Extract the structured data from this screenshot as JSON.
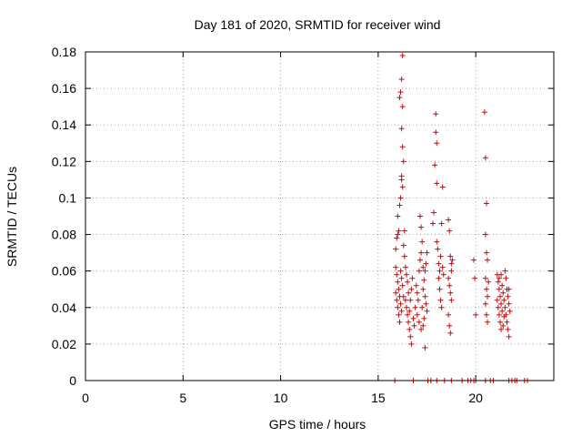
{
  "chart_data": {
    "type": "scatter",
    "title": "Day 181 of 2020, SRMTID for receiver wind",
    "xlabel": "GPS time / hours",
    "ylabel": "SRMTID / TECUs",
    "xlim": [
      0,
      24
    ],
    "ylim": [
      0,
      0.18
    ],
    "x_ticks": [
      0,
      5,
      10,
      15,
      20
    ],
    "y_ticks": [
      0,
      0.02,
      0.04,
      0.06,
      0.08,
      0.1,
      0.12,
      0.14,
      0.16,
      0.18
    ],
    "x_tick_labels": [
      "0",
      "5",
      "10",
      "15",
      "20"
    ],
    "y_tick_labels": [
      "0",
      "0.02",
      "0.04",
      "0.06",
      "0.08",
      "0.1",
      "0.12",
      "0.14",
      "0.16",
      "0.18"
    ],
    "grid": true,
    "marker": "+",
    "series_color": "#dd0000",
    "series": [
      {
        "points": [
          [
            15.85,
            0.0
          ],
          [
            16.8,
            0.0
          ],
          [
            17.55,
            0.0
          ],
          [
            17.7,
            0.0
          ],
          [
            18.0,
            0.0
          ],
          [
            18.4,
            0.0
          ],
          [
            18.75,
            0.0
          ],
          [
            19.3,
            0.0
          ],
          [
            19.6,
            0.0
          ],
          [
            19.75,
            0.0
          ],
          [
            19.9,
            0.0
          ],
          [
            20.0,
            0.0
          ],
          [
            20.5,
            0.0
          ],
          [
            20.75,
            0.0
          ],
          [
            20.9,
            0.0
          ],
          [
            21.7,
            0.0
          ],
          [
            21.85,
            0.0
          ],
          [
            22.0,
            0.0
          ],
          [
            22.1,
            0.0
          ],
          [
            22.5,
            0.0
          ],
          [
            22.65,
            0.0
          ],
          [
            15.9,
            0.072
          ],
          [
            15.95,
            0.078
          ],
          [
            16.0,
            0.08
          ],
          [
            16.0,
            0.09
          ],
          [
            16.05,
            0.082
          ],
          [
            16.1,
            0.096
          ],
          [
            16.15,
            0.1
          ],
          [
            16.2,
            0.11
          ],
          [
            16.25,
            0.106
          ],
          [
            16.1,
            0.155
          ],
          [
            16.15,
            0.158
          ],
          [
            16.2,
            0.165
          ],
          [
            16.25,
            0.178
          ],
          [
            16.25,
            0.15
          ],
          [
            16.2,
            0.138
          ],
          [
            16.25,
            0.128
          ],
          [
            16.3,
            0.12
          ],
          [
            16.2,
            0.112
          ],
          [
            15.9,
            0.062
          ],
          [
            15.95,
            0.058
          ],
          [
            16.0,
            0.054
          ],
          [
            16.05,
            0.05
          ],
          [
            16.1,
            0.046
          ],
          [
            16.15,
            0.06
          ],
          [
            16.2,
            0.056
          ],
          [
            16.25,
            0.052
          ],
          [
            15.9,
            0.048
          ],
          [
            15.95,
            0.044
          ],
          [
            16.0,
            0.04
          ],
          [
            16.05,
            0.036
          ],
          [
            16.1,
            0.032
          ],
          [
            16.15,
            0.042
          ],
          [
            16.2,
            0.038
          ],
          [
            16.3,
            0.046
          ],
          [
            16.35,
            0.068
          ],
          [
            16.4,
            0.062
          ],
          [
            16.45,
            0.058
          ],
          [
            16.5,
            0.054
          ],
          [
            16.3,
            0.074
          ],
          [
            16.35,
            0.082
          ],
          [
            16.4,
            0.044
          ],
          [
            16.45,
            0.04
          ],
          [
            16.5,
            0.036
          ],
          [
            16.55,
            0.032
          ],
          [
            16.6,
            0.028
          ],
          [
            16.65,
            0.024
          ],
          [
            16.7,
            0.02
          ],
          [
            16.6,
            0.038
          ],
          [
            16.55,
            0.048
          ],
          [
            16.65,
            0.044
          ],
          [
            16.7,
            0.05
          ],
          [
            16.75,
            0.056
          ],
          [
            16.8,
            0.034
          ],
          [
            16.85,
            0.03
          ],
          [
            16.9,
            0.04
          ],
          [
            16.95,
            0.052
          ],
          [
            17.0,
            0.048
          ],
          [
            17.05,
            0.044
          ],
          [
            17.1,
            0.06
          ],
          [
            17.15,
            0.066
          ],
          [
            17.2,
            0.07
          ],
          [
            17.15,
            0.09
          ],
          [
            17.2,
            0.084
          ],
          [
            17.25,
            0.076
          ],
          [
            17.0,
            0.036
          ],
          [
            17.1,
            0.032
          ],
          [
            17.2,
            0.028
          ],
          [
            17.3,
            0.03
          ],
          [
            17.35,
            0.034
          ],
          [
            17.4,
            0.018
          ],
          [
            17.25,
            0.04
          ],
          [
            17.3,
            0.05
          ],
          [
            17.35,
            0.055
          ],
          [
            17.4,
            0.06
          ],
          [
            17.45,
            0.064
          ],
          [
            17.5,
            0.07
          ],
          [
            17.4,
            0.046
          ],
          [
            17.45,
            0.042
          ],
          [
            17.5,
            0.038
          ],
          [
            17.3,
            0.062
          ],
          [
            17.8,
            0.086
          ],
          [
            17.85,
            0.092
          ],
          [
            17.9,
            0.118
          ],
          [
            17.95,
            0.146
          ],
          [
            18.0,
            0.13
          ],
          [
            17.95,
            0.136
          ],
          [
            18.0,
            0.108
          ],
          [
            18.1,
            0.064
          ],
          [
            18.15,
            0.06
          ],
          [
            18.2,
            0.068
          ],
          [
            18.25,
            0.086
          ],
          [
            18.3,
            0.106
          ],
          [
            18.15,
            0.05
          ],
          [
            18.2,
            0.044
          ],
          [
            18.25,
            0.04
          ],
          [
            18.0,
            0.076
          ],
          [
            18.05,
            0.072
          ],
          [
            18.1,
            0.056
          ],
          [
            18.3,
            0.062
          ],
          [
            18.35,
            0.058
          ],
          [
            18.6,
            0.088
          ],
          [
            18.65,
            0.082
          ],
          [
            18.7,
            0.068
          ],
          [
            18.75,
            0.064
          ],
          [
            18.6,
            0.056
          ],
          [
            18.65,
            0.052
          ],
          [
            18.7,
            0.048
          ],
          [
            18.75,
            0.044
          ],
          [
            18.6,
            0.036
          ],
          [
            18.65,
            0.03
          ],
          [
            18.7,
            0.026
          ],
          [
            18.75,
            0.06
          ],
          [
            18.8,
            0.066
          ],
          [
            19.9,
            0.066
          ],
          [
            19.95,
            0.056
          ],
          [
            20.0,
            0.036
          ],
          [
            20.45,
            0.147
          ],
          [
            20.5,
            0.122
          ],
          [
            20.55,
            0.097
          ],
          [
            20.5,
            0.08
          ],
          [
            20.55,
            0.07
          ],
          [
            20.6,
            0.066
          ],
          [
            20.5,
            0.056
          ],
          [
            20.55,
            0.05
          ],
          [
            20.6,
            0.046
          ],
          [
            20.5,
            0.042
          ],
          [
            20.55,
            0.036
          ],
          [
            20.6,
            0.032
          ],
          [
            20.65,
            0.054
          ],
          [
            21.1,
            0.058
          ],
          [
            21.15,
            0.054
          ],
          [
            21.2,
            0.05
          ],
          [
            21.25,
            0.046
          ],
          [
            21.3,
            0.042
          ],
          [
            21.35,
            0.038
          ],
          [
            21.1,
            0.044
          ],
          [
            21.15,
            0.04
          ],
          [
            21.2,
            0.036
          ],
          [
            21.25,
            0.032
          ],
          [
            21.3,
            0.028
          ],
          [
            21.35,
            0.052
          ],
          [
            21.4,
            0.048
          ],
          [
            21.45,
            0.044
          ],
          [
            21.5,
            0.06
          ],
          [
            21.55,
            0.056
          ],
          [
            21.6,
            0.05
          ],
          [
            21.65,
            0.046
          ],
          [
            21.5,
            0.04
          ],
          [
            21.55,
            0.036
          ],
          [
            21.6,
            0.032
          ],
          [
            21.65,
            0.028
          ],
          [
            21.7,
            0.024
          ],
          [
            21.4,
            0.03
          ],
          [
            21.45,
            0.035
          ],
          [
            21.7,
            0.042
          ],
          [
            21.75,
            0.038
          ],
          [
            21.7,
            0.05
          ],
          [
            21.2,
            0.056
          ],
          [
            21.3,
            0.058
          ]
        ]
      }
    ]
  }
}
